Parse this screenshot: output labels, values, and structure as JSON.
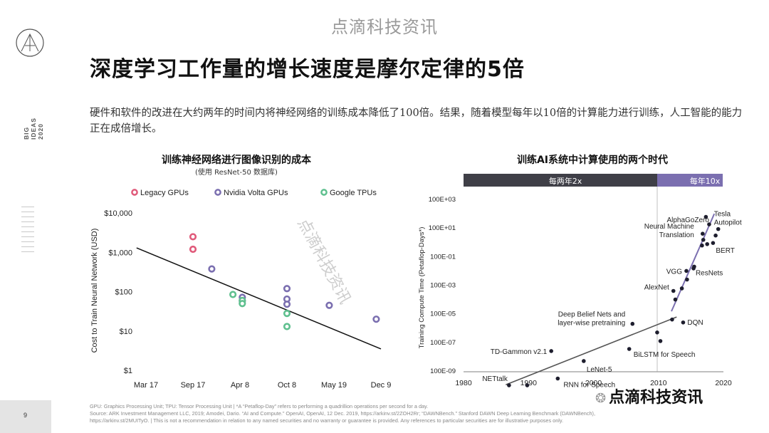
{
  "watermark": "点滴科技资讯",
  "side_label": [
    "BIG",
    "IDEAS",
    "2020"
  ],
  "title": "深度学习工作量的增长速度是摩尔定律的5倍",
  "subtitle": "硬件和软件的改进在大约两年的时间内将神经网络的训练成本降低了100倍。结果，随着模型每年以10倍的计算能力进行训练，人工智能的能力正在成倍增长。",
  "page_number": "9",
  "footnote": [
    "GPU: Graphics Processing Unit; TPU: Tensor Processing Unit   |   *A “Petaflop-Day” refers to performing a quadrillion operations per second for a day.",
    "Source: ARK Investment Management LLC, 2019; Amodei, Dario. “AI and Compute.” OpenAI, OpenAI, 12 Dec. 2019, https://arkinv.st/2ZOH2Rr; “DAWNBench.” Stanford DAWN Deep Learning Benchmark (DAWNBench),",
    "https://arkinv.st/2MUITyO.   |   This is not a recommendation in relation to any named securities and no warranty or guarantee is provided. Any references to particular securities are for illustrative purposes only."
  ],
  "wechat_label": "点滴科技资讯",
  "colors": {
    "legacy": "#e05a7a",
    "volta": "#7b6fb0",
    "tpu": "#5fc08f",
    "dark_band": "#3f3f47",
    "purple_band": "#7b6fb0"
  },
  "chart_data": [
    {
      "type": "scatter",
      "title": "训练神经网络进行图像识别的成本",
      "subtitle": "(使用 ResNet-50 数据库)",
      "ylabel": "Cost to Train Neural Network (USD)",
      "x_ticks": [
        "Mar 17",
        "Sep 17",
        "Apr 8",
        "Oct 8",
        "May 19",
        "Dec 9"
      ],
      "y_ticks": [
        "$1",
        "$10",
        "$100",
        "$1,000",
        "$10,000"
      ],
      "ylim": [
        1,
        10000
      ],
      "y_scale": "log",
      "legend": [
        "Legacy GPUs",
        "Nvidia Volta GPUs",
        "Google TPUs"
      ],
      "series": [
        {
          "name": "Legacy GPUs",
          "points": [
            [
              1.0,
              2500
            ],
            [
              1.0,
              1200
            ]
          ]
        },
        {
          "name": "Nvidia Volta GPUs",
          "points": [
            [
              1.4,
              380
            ],
            [
              2.05,
              72
            ],
            [
              2.05,
              58
            ],
            [
              3.0,
              120
            ],
            [
              3.0,
              65
            ],
            [
              3.0,
              48
            ],
            [
              3.9,
              45
            ],
            [
              4.9,
              20
            ]
          ]
        },
        {
          "name": "Google TPUs",
          "points": [
            [
              1.85,
              85
            ],
            [
              2.05,
              60
            ],
            [
              2.05,
              50
            ],
            [
              3.0,
              28
            ],
            [
              3.0,
              13
            ]
          ]
        }
      ],
      "trend": [
        [
          -0.2,
          1300
        ],
        [
          5.0,
          3.5
        ]
      ]
    },
    {
      "type": "scatter",
      "title": "训练AI系统中计算使用的两个时代",
      "ylabel": "Training Compute Time (Petaflop-Days*)",
      "xlim": [
        1980,
        2020
      ],
      "x_ticks": [
        "1980",
        "1990",
        "2000",
        "2010",
        "2020"
      ],
      "y_ticks": [
        "100E-09",
        "100E-07",
        "100E-05",
        "100E-03",
        "100E-01",
        "100E+01",
        "100E+03"
      ],
      "y_scale": "log",
      "eras": [
        {
          "label": "每两年2x",
          "start": 1980,
          "end": 2011
        },
        {
          "label": "每年10x",
          "start": 2011,
          "end": 2020
        }
      ],
      "points": [
        {
          "label": "NETtalk",
          "x": 1987,
          "y": 1e-08
        },
        {
          "label": "",
          "x": 1989.8,
          "y": 1e-08
        },
        {
          "label": "TD-Gammon v2.1",
          "x": 1993.5,
          "y": 2.5e-06
        },
        {
          "label": "RNN for Speech",
          "x": 1994.5,
          "y": 3e-08
        },
        {
          "label": "LeNet-5",
          "x": 1998.5,
          "y": 5e-07
        },
        {
          "label": "BiLSTM for Speech",
          "x": 2005.5,
          "y": 3.5e-06
        },
        {
          "label": "Deep Belief Nets and layer-wise pretraining",
          "x": 2006,
          "y": 0.0002
        },
        {
          "label": "",
          "x": 2009.8,
          "y": 5e-05
        },
        {
          "label": "",
          "x": 2010.3,
          "y": 1.25e-05
        },
        {
          "label": "DQN",
          "x": 2013.8,
          "y": 0.00025
        },
        {
          "label": "",
          "x": 2012.1,
          "y": 0.0004
        },
        {
          "label": "AlexNet",
          "x": 2012.3,
          "y": 0.04
        },
        {
          "label": "",
          "x": 2012.6,
          "y": 0.01
        },
        {
          "label": "",
          "x": 2013.6,
          "y": 0.06
        },
        {
          "label": "",
          "x": 2014.4,
          "y": 0.25
        },
        {
          "label": "VGG",
          "x": 2014.3,
          "y": 1.0
        },
        {
          "label": "ResNets",
          "x": 2015.5,
          "y": 2.0
        },
        {
          "label": "",
          "x": 2015.4,
          "y": 1.5
        },
        {
          "label": "",
          "x": 2016.7,
          "y": 60
        },
        {
          "label": "Neural Machine Translation",
          "x": 2016.8,
          "y": 400
        },
        {
          "label": "",
          "x": 2016.9,
          "y": 150
        },
        {
          "label": "",
          "x": 2017.5,
          "y": 75
        },
        {
          "label": "BERT",
          "x": 2018.4,
          "y": 90
        },
        {
          "label": "",
          "x": 2018.8,
          "y": 300
        },
        {
          "label": "AlphaGoZero",
          "x": 2017.8,
          "y": 1800
        },
        {
          "label": "Tesla Autopilot",
          "x": 2019.2,
          "y": 850
        },
        {
          "label": "",
          "x": 2017.3,
          "y": 6000
        }
      ],
      "trend_lines": [
        {
          "era": "每两年2x",
          "from": [
            1986.5,
            1.1e-08
          ],
          "to": [
            2012.8,
            0.0006
          ]
        },
        {
          "era": "每年10x",
          "from": [
            2012.0,
            0.0015
          ],
          "to": [
            2018.6,
            10000
          ]
        }
      ]
    }
  ]
}
